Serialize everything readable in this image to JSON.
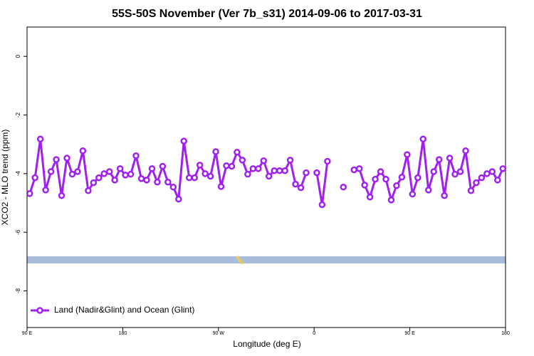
{
  "chart_data": {
    "type": "line",
    "title": "55S-50S November (Ver 7b_s31)   2014-09-06 to 2017-03-31",
    "xlabel": "Longitude (deg E)",
    "ylabel": "XCO2 - MLO trend (ppm)",
    "xlim": [
      90,
      540
    ],
    "xticks": [
      {
        "value": 90,
        "label": "90 E"
      },
      180,
      {
        "value": 270,
        "label": "90 W"
      },
      {
        "value": 360,
        "label": "0"
      },
      {
        "value": 450,
        "label": "90 E"
      },
      {
        "value": 540,
        "label": "180"
      }
    ],
    "ylim": [
      -9.25,
      1
    ],
    "yticks": [
      0,
      -2,
      -4,
      -6,
      -8
    ],
    "legend": "bottom-left",
    "x": [
      92.5,
      97.5,
      102.5,
      107.5,
      112.5,
      117.5,
      122.5,
      127.5,
      132.5,
      137.5,
      142.5,
      147.5,
      152.5,
      157.5,
      162.5,
      167.5,
      172.5,
      177.5,
      182.5,
      187.5,
      192.5,
      197.5,
      202.5,
      207.5,
      212.5,
      217.5,
      222.5,
      227.5,
      232.5,
      237.5,
      242.5,
      247.5,
      252.5,
      257.5,
      262.5,
      267.5,
      272.5,
      277.5,
      282.5,
      287.5,
      292.5,
      297.5,
      302.5,
      307.5,
      312.5,
      317.5,
      322.5,
      327.5,
      332.5,
      337.5,
      342.5,
      347.5,
      352.5,
      357.5,
      362.5,
      367.5,
      372.5,
      377.5,
      382.5,
      387.5,
      392.5,
      397.5,
      402.5,
      407.5,
      412.5,
      417.5,
      422.5,
      427.5,
      432.5,
      437.5,
      442.5,
      447.5,
      452.5,
      457.5,
      462.5,
      467.5,
      472.5,
      477.5,
      482.5,
      487.5,
      492.5,
      497.5,
      502.5,
      507.5,
      512.5,
      517.5,
      522.5,
      527.5,
      532.5,
      537.5
    ],
    "series": [
      {
        "name": "Land (Nadir&Glint) and Ocean (Glint)",
        "color": "#a020f0",
        "values": [
          -4.68,
          -4.14,
          -2.82,
          -4.56,
          -3.93,
          -3.52,
          -4.75,
          -3.47,
          -4.02,
          -3.93,
          -3.22,
          -4.58,
          -4.31,
          -4.14,
          -4.0,
          -3.93,
          -4.22,
          -3.83,
          -4.05,
          -4.02,
          -3.39,
          -4.17,
          -4.22,
          -3.83,
          -4.29,
          -3.75,
          -4.29,
          -4.46,
          -4.87,
          -2.89,
          -4.14,
          -4.14,
          -3.71,
          -4.0,
          -4.09,
          -3.25,
          -4.44,
          -3.73,
          -3.75,
          -3.27,
          -3.54,
          -4.02,
          -3.83,
          -3.83,
          -3.56,
          -4.09,
          -3.9,
          -3.9,
          -3.9,
          -3.54,
          -4.36,
          -4.48,
          -3.97,
          null,
          -3.97,
          -5.06,
          -3.58,
          null,
          null,
          -4.46,
          null,
          -3.87,
          -3.83,
          -4.39,
          -4.8,
          -4.19,
          -3.93,
          -4.19,
          -4.9,
          -4.41,
          -4.12,
          -3.35,
          -4.7,
          -4.14,
          -2.82,
          -4.56,
          -3.93,
          -3.52,
          -4.75,
          -3.47,
          -4.02,
          -3.93,
          -3.22,
          -4.58,
          -4.31,
          -4.14,
          -4.0,
          -3.93,
          -4.22,
          -3.83
        ]
      }
    ]
  }
}
